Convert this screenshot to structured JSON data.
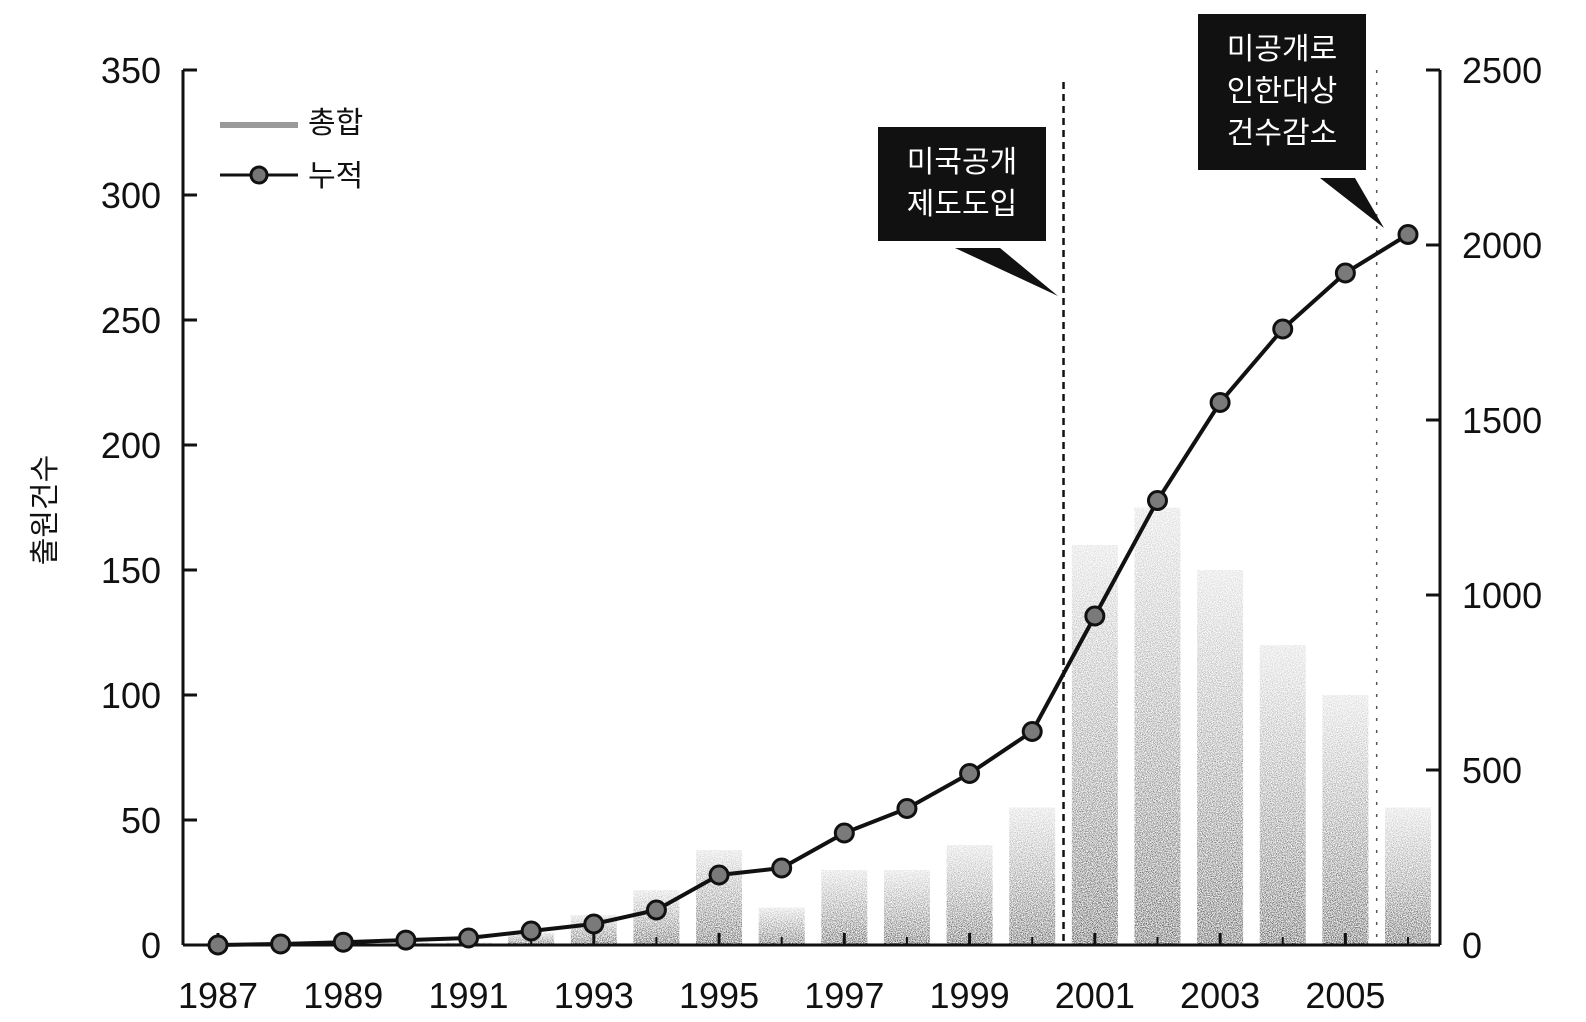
{
  "chart_data": {
    "type": "bar",
    "ylabel": "출원건수",
    "left_axis": {
      "ylim": [
        0,
        350
      ],
      "ticks": [
        "0",
        "50",
        "100",
        "150",
        "200",
        "250",
        "300",
        "350"
      ]
    },
    "right_axis": {
      "ylim": [
        0,
        2500
      ],
      "ticks": [
        "0",
        "500",
        "1000",
        "1500",
        "2000",
        "2500"
      ]
    },
    "x_tick_labels": [
      "1987",
      "1989",
      "1991",
      "1993",
      "1995",
      "1997",
      "1999",
      "2001",
      "2003",
      "2005"
    ],
    "categories": [
      "1987",
      "1988",
      "1989",
      "1990",
      "1991",
      "1992",
      "1993",
      "1994",
      "1995",
      "1996",
      "1997",
      "1998",
      "1999",
      "2000",
      "2001",
      "2002",
      "2003",
      "2004",
      "2005",
      "2006"
    ],
    "series": [
      {
        "name": "총합",
        "type": "bar",
        "axis": "left",
        "values": [
          0,
          1,
          1,
          1,
          1,
          5,
          12,
          22,
          38,
          15,
          30,
          30,
          40,
          55,
          160,
          175,
          150,
          120,
          100,
          55
        ]
      },
      {
        "name": "누적",
        "type": "line",
        "axis": "right",
        "values": [
          0,
          3,
          8,
          14,
          20,
          40,
          60,
          100,
          200,
          220,
          320,
          390,
          490,
          610,
          940,
          1270,
          1550,
          1760,
          1920,
          2030
        ]
      }
    ],
    "annotations": [
      {
        "lines": [
          "미국공개",
          "제도도입"
        ],
        "x_year": 2000.5
      },
      {
        "lines": [
          "미공개로",
          "인한대상",
          "건수감소"
        ],
        "x_year": 2005.5
      }
    ],
    "legend": "top-left",
    "grid": false
  }
}
